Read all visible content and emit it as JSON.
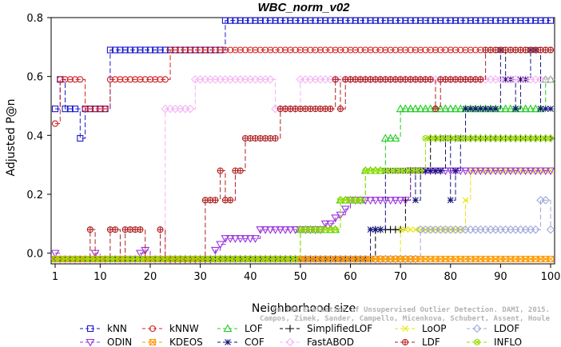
{
  "chart_data": {
    "type": "line",
    "title": "WBC_norm_v02",
    "xlabel": "Neighborhood size",
    "ylabel": "Adjusted P@n",
    "xlim": [
      1,
      100
    ],
    "ylim": [
      -0.02,
      0.8
    ],
    "x_ticks": [
      1,
      10,
      20,
      30,
      40,
      50,
      60,
      70,
      80,
      90,
      100
    ],
    "y_ticks": [
      0.0,
      0.2,
      0.4,
      0.6,
      0.8
    ],
    "y_tick_labels": [
      "0.0",
      "0.2",
      "0.4",
      "0.6",
      "0.8"
    ],
    "legend_position": "bottom",
    "credit": [
      "Campos, Zimek, Sander, Campello, Micenkova, Schubert, Assent, Houle",
      "On the Evaluation of Unsupervised Outlier Detection. DAMI, 2015."
    ],
    "series": [
      {
        "name": "kNN",
        "color": "#1a1acc",
        "marker": "square",
        "dash": "6,3",
        "segments": [
          [
            1,
            0.49
          ],
          [
            2,
            0.59
          ],
          [
            3,
            0.49
          ],
          [
            6,
            0.39
          ],
          [
            7,
            0.49
          ],
          [
            11,
            0.49
          ],
          [
            12,
            0.69
          ],
          [
            34,
            0.69
          ],
          [
            35,
            0.79
          ],
          [
            100,
            0.79
          ]
        ]
      },
      {
        "name": "kNNW",
        "color": "#d42020",
        "marker": "circle",
        "dash": "6,3",
        "segments": [
          [
            1,
            0.44
          ],
          [
            2,
            0.59
          ],
          [
            7,
            0.49
          ],
          [
            11,
            0.49
          ],
          [
            12,
            0.59
          ],
          [
            23,
            0.59
          ],
          [
            24,
            0.69
          ],
          [
            100,
            0.69
          ]
        ]
      },
      {
        "name": "LOF",
        "color": "#22cc22",
        "marker": "triangle",
        "dash": "6,3",
        "segments": [
          [
            1,
            -0.02
          ],
          [
            49,
            -0.02
          ],
          [
            50,
            0.08
          ],
          [
            57,
            0.08
          ],
          [
            58,
            0.18
          ],
          [
            62,
            0.18
          ],
          [
            63,
            0.28
          ],
          [
            66,
            0.28
          ],
          [
            67,
            0.39
          ],
          [
            69,
            0.39
          ],
          [
            70,
            0.49
          ],
          [
            98,
            0.49
          ],
          [
            99,
            0.59
          ],
          [
            100,
            0.59
          ]
        ]
      },
      {
        "name": "SimplifiedLOF",
        "color": "#000000",
        "marker": "plus",
        "dash": "6,3",
        "segments": [
          [
            1,
            -0.02
          ],
          [
            64,
            -0.02
          ],
          [
            65,
            0.08
          ],
          [
            70,
            0.08
          ],
          [
            71,
            0.18
          ],
          [
            72,
            0.28
          ],
          [
            75,
            0.28
          ],
          [
            76,
            0.39
          ],
          [
            100,
            0.39
          ]
        ]
      },
      {
        "name": "LoOP",
        "color": "#e6e600",
        "marker": "x",
        "dash": "6,3",
        "segments": [
          [
            1,
            -0.02
          ],
          [
            69,
            -0.02
          ],
          [
            70,
            0.08
          ],
          [
            82,
            0.08
          ],
          [
            83,
            0.18
          ],
          [
            84,
            0.28
          ],
          [
            100,
            0.28
          ]
        ]
      },
      {
        "name": "LDOF",
        "color": "#a0a8d8",
        "marker": "diamond",
        "dash": "6,3",
        "segments": [
          [
            1,
            -0.02
          ],
          [
            73,
            -0.02
          ],
          [
            74,
            0.08
          ],
          [
            97,
            0.08
          ],
          [
            98,
            0.18
          ],
          [
            99,
            0.18
          ],
          [
            100,
            0.08
          ]
        ]
      },
      {
        "name": "ODIN",
        "color": "#9a33dd",
        "marker": "triangle-down",
        "dash": "6,3",
        "segments": [
          [
            1,
            0.0
          ],
          [
            2,
            -0.02
          ],
          [
            8,
            -0.02
          ],
          [
            9,
            0.0
          ],
          [
            10,
            -0.02
          ],
          [
            17,
            -0.02
          ],
          [
            18,
            0.0
          ],
          [
            19,
            0.01
          ],
          [
            20,
            -0.02
          ],
          [
            32,
            -0.02
          ],
          [
            33,
            0.01
          ],
          [
            34,
            0.03
          ],
          [
            35,
            0.05
          ],
          [
            41,
            0.05
          ],
          [
            42,
            0.08
          ],
          [
            54,
            0.08
          ],
          [
            55,
            0.1
          ],
          [
            57,
            0.12
          ],
          [
            58,
            0.13
          ],
          [
            59,
            0.15
          ],
          [
            60,
            0.18
          ],
          [
            71,
            0.18
          ],
          [
            72,
            0.28
          ],
          [
            100,
            0.28
          ]
        ]
      },
      {
        "name": "COF",
        "color": "#14147a",
        "marker": "asterisk",
        "dash": "6,3",
        "segments": [
          [
            1,
            -0.02
          ],
          [
            63,
            -0.02
          ],
          [
            64,
            0.08
          ],
          [
            66,
            0.08
          ],
          [
            67,
            0.28
          ],
          [
            72,
            0.28
          ],
          [
            73,
            0.18
          ],
          [
            74,
            0.28
          ],
          [
            78,
            0.28
          ],
          [
            79,
            0.39
          ],
          [
            80,
            0.18
          ],
          [
            81,
            0.28
          ],
          [
            82,
            0.39
          ],
          [
            83,
            0.49
          ],
          [
            89,
            0.49
          ],
          [
            90,
            0.69
          ],
          [
            91,
            0.59
          ],
          [
            92,
            0.59
          ],
          [
            93,
            0.49
          ],
          [
            94,
            0.59
          ],
          [
            95,
            0.59
          ],
          [
            96,
            0.69
          ],
          [
            97,
            0.69
          ],
          [
            98,
            0.49
          ],
          [
            100,
            0.49
          ]
        ]
      },
      {
        "name": "FastABOD",
        "color": "#f4b4f4",
        "marker": "diamond",
        "dash": "6,3",
        "segments": [
          [
            1,
            -0.02
          ],
          [
            22,
            -0.02
          ],
          [
            23,
            0.49
          ],
          [
            28,
            0.49
          ],
          [
            29,
            0.59
          ],
          [
            44,
            0.59
          ],
          [
            45,
            0.49
          ],
          [
            49,
            0.49
          ],
          [
            50,
            0.59
          ],
          [
            100,
            0.59
          ]
        ]
      },
      {
        "name": "LDF",
        "color": "#b02020",
        "marker": "circle-plus",
        "dash": "6,3",
        "segments": [
          [
            1,
            -0.02
          ],
          [
            7,
            -0.02
          ],
          [
            8,
            0.08
          ],
          [
            9,
            -0.02
          ],
          [
            11,
            -0.02
          ],
          [
            12,
            0.08
          ],
          [
            13,
            0.08
          ],
          [
            14,
            -0.02
          ],
          [
            15,
            0.08
          ],
          [
            18,
            0.08
          ],
          [
            19,
            -0.02
          ],
          [
            21,
            -0.02
          ],
          [
            22,
            0.08
          ],
          [
            23,
            -0.02
          ],
          [
            30,
            -0.02
          ],
          [
            31,
            0.18
          ],
          [
            33,
            0.18
          ],
          [
            34,
            0.28
          ],
          [
            35,
            0.18
          ],
          [
            36,
            0.18
          ],
          [
            37,
            0.28
          ],
          [
            38,
            0.28
          ],
          [
            39,
            0.39
          ],
          [
            45,
            0.39
          ],
          [
            46,
            0.49
          ],
          [
            49,
            0.49
          ],
          [
            50,
            0.49
          ],
          [
            56,
            0.49
          ],
          [
            57,
            0.59
          ],
          [
            58,
            0.49
          ],
          [
            59,
            0.59
          ],
          [
            76,
            0.59
          ],
          [
            77,
            0.49
          ],
          [
            78,
            0.59
          ],
          [
            86,
            0.59
          ],
          [
            87,
            0.69
          ],
          [
            100,
            0.69
          ]
        ]
      },
      {
        "name": "KDEOS",
        "color": "#ff9900",
        "marker": "square-x",
        "dash": "6,3",
        "segments": [
          [
            1,
            -0.02
          ],
          [
            100,
            -0.02
          ]
        ]
      },
      {
        "name": "INFLO",
        "color": "#99dd00",
        "marker": "circle-x",
        "dash": "6,3",
        "segments": [
          [
            1,
            -0.02
          ],
          [
            49,
            -0.02
          ],
          [
            50,
            0.08
          ],
          [
            57,
            0.08
          ],
          [
            58,
            0.18
          ],
          [
            62,
            0.18
          ],
          [
            63,
            0.28
          ],
          [
            74,
            0.28
          ],
          [
            75,
            0.39
          ],
          [
            100,
            0.39
          ]
        ]
      }
    ],
    "legend_rows": [
      [
        "kNN",
        "kNNW",
        "LOF",
        "SimplifiedLOF",
        "LoOP",
        "LDOF"
      ],
      [
        "ODIN",
        "KDEOS",
        "COF",
        "FastABOD",
        "LDF",
        "INFLO"
      ]
    ]
  }
}
